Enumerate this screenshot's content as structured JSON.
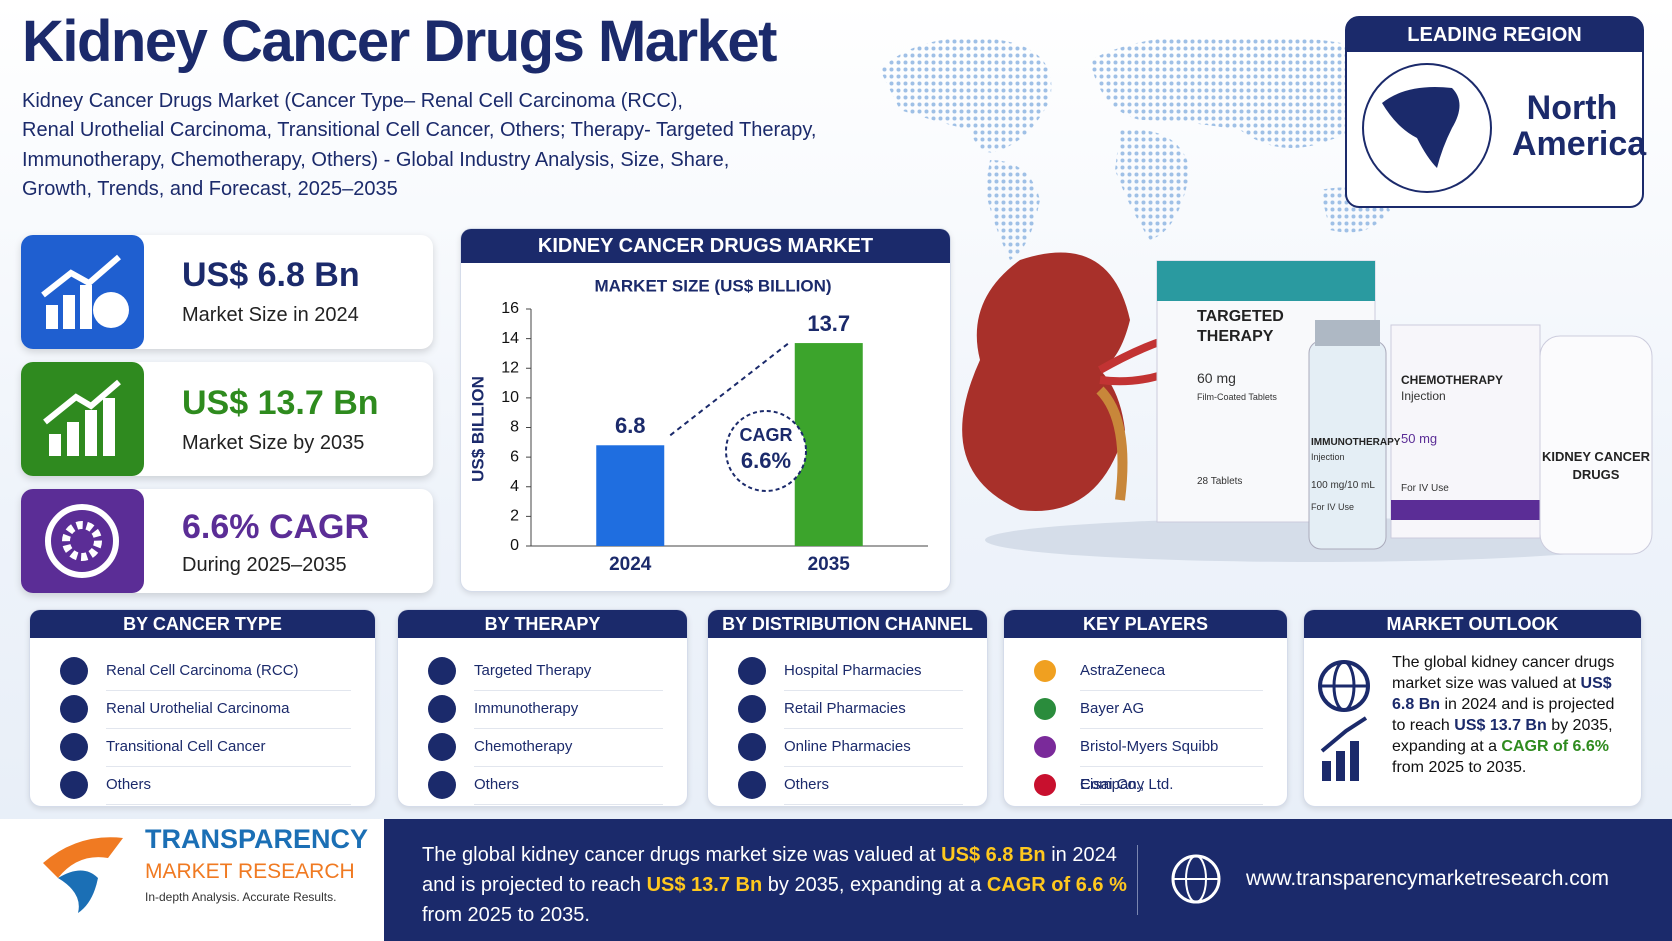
{
  "header": {
    "title": "Kidney Cancer Drugs Market",
    "subtitle_lines": [
      "Kidney Cancer Drugs Market (Cancer Type– Renal Cell Carcinoma (RCC),",
      "Renal Urothelial Carcinoma, Transitional Cell Cancer, Others; Therapy- Targeted Therapy,",
      "Immunotherapy, Chemotherapy, Others) - Global Industry Analysis, Size, Share,",
      "Growth, Trends, and Forecast, 2025–2035"
    ]
  },
  "leading_region": {
    "heading": "LEADING REGION",
    "name_lines": [
      "North",
      "America"
    ]
  },
  "stats": [
    {
      "value": "US$ 6.8 Bn",
      "label": "Market Size in 2024"
    },
    {
      "value": "US$ 13.7 Bn",
      "label": "Market Size by 2035"
    },
    {
      "value": "6.6% CAGR",
      "label": "During 2025–2035"
    }
  ],
  "chart_data": {
    "type": "bar",
    "title": "KIDNEY CANCER DRUGS MARKET",
    "subtitle": "MARKET SIZE (US$ BILLION)",
    "y_label": "US$ BILLION",
    "categories": [
      "2024",
      "2035"
    ],
    "values": [
      6.8,
      13.7
    ],
    "colors": [
      "#1f6ee0",
      "#3ca42c"
    ],
    "ylim": [
      0,
      16
    ],
    "yticks": [
      0,
      2,
      4,
      6,
      8,
      10,
      12,
      14,
      16
    ],
    "annotation": [
      "CAGR",
      "6.6%"
    ]
  },
  "products": [
    {
      "name_lines": [
        "TARGETED",
        "THERAPY"
      ],
      "lines": [
        "60 mg",
        "Film-Coated Tablets",
        "28 Tablets"
      ]
    },
    {
      "name_lines": [
        "IMMUNOTHERAPY"
      ],
      "lines": [
        "Injection",
        "100 mg/10 mL",
        "For IV Use"
      ]
    },
    {
      "name_lines": [
        "CHEMOTHERAPY"
      ],
      "lines": [
        "Injection",
        "50 mg",
        "For IV Use"
      ]
    },
    {
      "name_lines": [
        "KIDNEY CANCER",
        "DRUGS"
      ]
    }
  ],
  "segments": [
    {
      "heading": "BY CANCER TYPE",
      "items": [
        "Renal Cell Carcinoma (RCC)",
        "Renal Urothelial Carcinoma",
        "Transitional Cell Cancer",
        "Others"
      ]
    },
    {
      "heading": "BY THERAPY",
      "items": [
        "Targeted Therapy",
        "Immunotherapy",
        "Chemotherapy",
        "Others"
      ]
    },
    {
      "heading": "BY DISTRIBUTION CHANNEL",
      "items": [
        "Hospital Pharmacies",
        "Retail Pharmacies",
        "Online Pharmacies",
        "Others"
      ]
    },
    {
      "heading": "KEY PLAYERS",
      "items": [
        "AstraZeneca",
        "Bayer AG",
        "Bristol-Myers Squibb Company",
        "Eisai Co., Ltd."
      ]
    }
  ],
  "outlook": {
    "heading": "MARKET OUTLOOK",
    "runs": [
      "The global kidney cancer drugs market size was valued at ",
      "US$ 6.8 Bn",
      " in 2024 and is projected to reach ",
      "US$ 13.7 Bn",
      " by 2035, expanding at a ",
      "CAGR of 6.6%",
      " from 2025 to 2035."
    ]
  },
  "footer": {
    "brand": "TRANSPARENCY",
    "brand_sub": "MARKET RESEARCH",
    "tagline": "In-depth Analysis. Accurate Results.",
    "runs": [
      "The global kidney cancer drugs market size was valued at ",
      "US$ 6.8 Bn",
      " in 2024 and is projected to reach ",
      "US$ 13.7 Bn",
      " by 2035, expanding at a ",
      "CAGR of 6.6 %",
      " from 2025 to 2035."
    ],
    "website": "www.transparencymarketresearch.com"
  }
}
